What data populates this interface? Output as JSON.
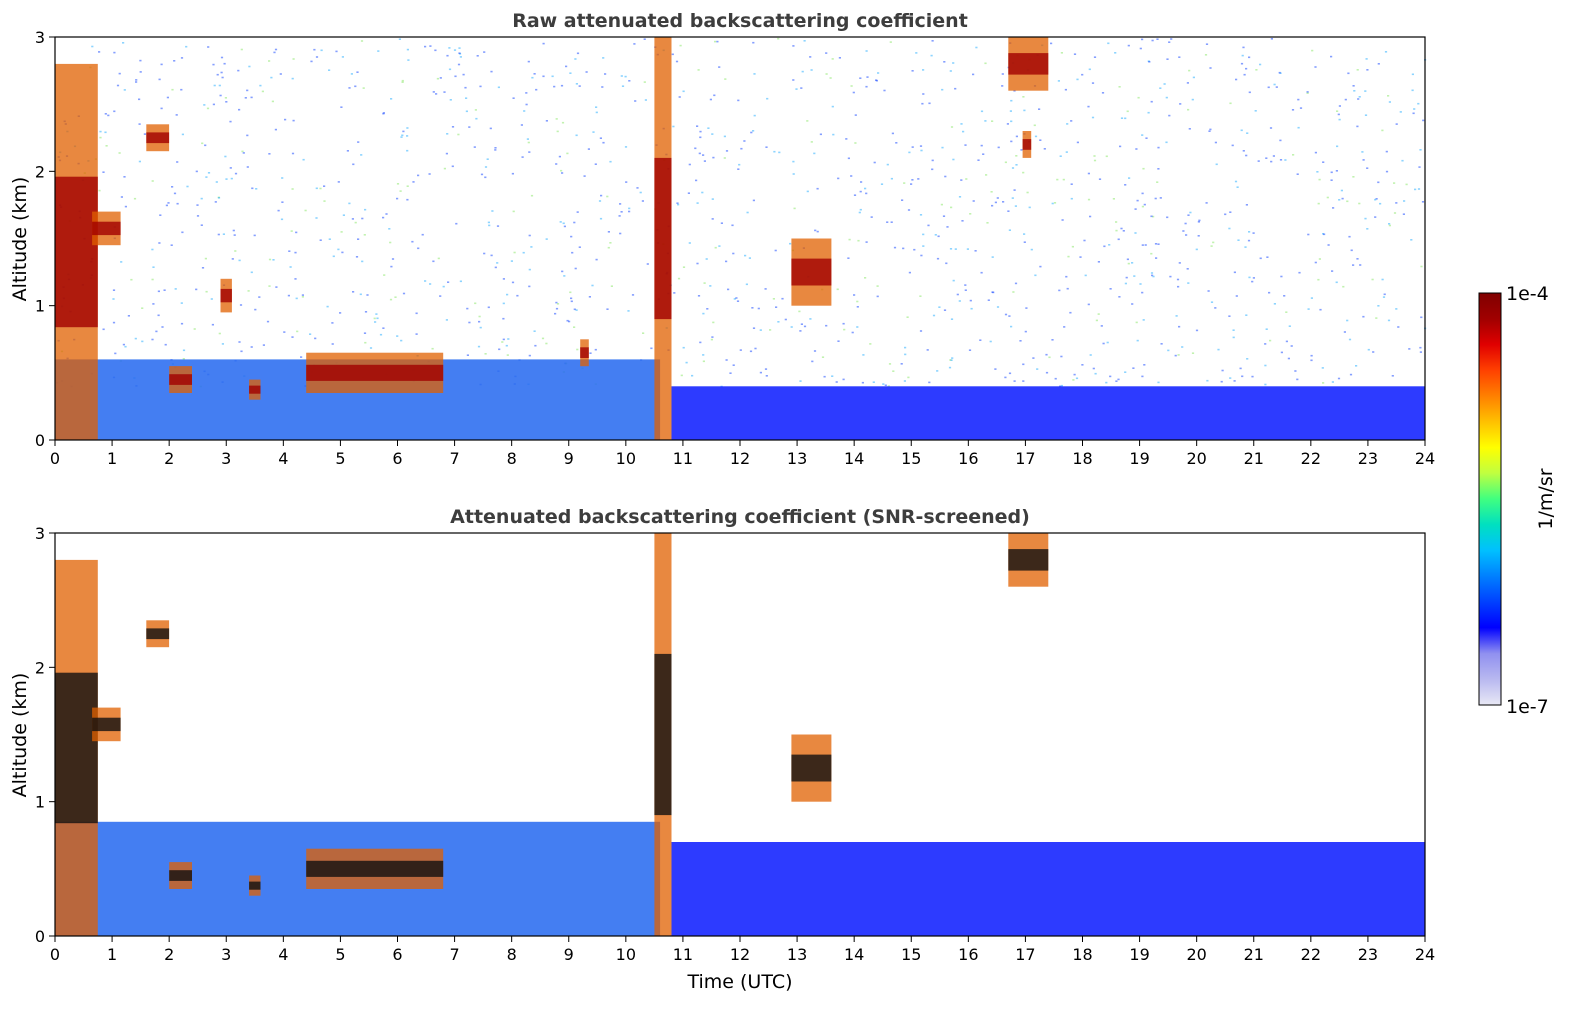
{
  "chart_data": [
    {
      "type": "heatmap",
      "title": "Raw attenuated backscattering coefficient",
      "xlabel": "",
      "ylabel": "Altitude (km)",
      "xlim": [
        0,
        24
      ],
      "ylim": [
        0,
        3
      ],
      "x_ticks": [
        "0",
        "1",
        "2",
        "3",
        "4",
        "5",
        "6",
        "7",
        "8",
        "9",
        "10",
        "11",
        "12",
        "13",
        "14",
        "15",
        "16",
        "17",
        "18",
        "19",
        "20",
        "21",
        "22",
        "23",
        "24"
      ],
      "y_ticks": [
        "0",
        "1",
        "2",
        "3"
      ],
      "screened": false,
      "colorscale": "log",
      "features": [
        {
          "kind": "boundary_layer",
          "t_start": 0.0,
          "t_end": 10.6,
          "alt_top": 0.6
        },
        {
          "kind": "boundary_layer",
          "t_start": 10.8,
          "t_end": 24.0,
          "alt_top": 0.4
        },
        {
          "kind": "cloud",
          "t_start": 0.0,
          "t_end": 0.75,
          "alt_bottom": 0.0,
          "alt_top": 2.8
        },
        {
          "kind": "cloud",
          "t_start": 0.65,
          "t_end": 1.15,
          "alt_bottom": 1.45,
          "alt_top": 1.7
        },
        {
          "kind": "cloud",
          "t_start": 1.6,
          "t_end": 2.0,
          "alt_bottom": 2.15,
          "alt_top": 2.35
        },
        {
          "kind": "cloud",
          "t_start": 2.0,
          "t_end": 2.4,
          "alt_bottom": 0.35,
          "alt_top": 0.55
        },
        {
          "kind": "cloud",
          "t_start": 2.9,
          "t_end": 3.1,
          "alt_bottom": 0.95,
          "alt_top": 1.2
        },
        {
          "kind": "cloud",
          "t_start": 3.4,
          "t_end": 3.6,
          "alt_bottom": 0.3,
          "alt_top": 0.45
        },
        {
          "kind": "cloud",
          "t_start": 4.4,
          "t_end": 6.8,
          "alt_bottom": 0.35,
          "alt_top": 0.65
        },
        {
          "kind": "cloud",
          "t_start": 9.2,
          "t_end": 9.35,
          "alt_bottom": 0.55,
          "alt_top": 0.75
        },
        {
          "kind": "cloud",
          "t_start": 10.5,
          "t_end": 10.8,
          "alt_bottom": 0.0,
          "alt_top": 3.0
        },
        {
          "kind": "cloud",
          "t_start": 12.9,
          "t_end": 13.6,
          "alt_bottom": 1.0,
          "alt_top": 1.5
        },
        {
          "kind": "cloud",
          "t_start": 16.7,
          "t_end": 17.4,
          "alt_bottom": 2.6,
          "alt_top": 3.0
        },
        {
          "kind": "cloud",
          "t_start": 16.95,
          "t_end": 17.1,
          "alt_bottom": 2.1,
          "alt_top": 2.3
        }
      ]
    },
    {
      "type": "heatmap",
      "title": "Attenuated backscattering coefficient (SNR-screened)",
      "xlabel": "Time (UTC)",
      "ylabel": "Altitude (km)",
      "xlim": [
        0,
        24
      ],
      "ylim": [
        0,
        3
      ],
      "x_ticks": [
        "0",
        "1",
        "2",
        "3",
        "4",
        "5",
        "6",
        "7",
        "8",
        "9",
        "10",
        "11",
        "12",
        "13",
        "14",
        "15",
        "16",
        "17",
        "18",
        "19",
        "20",
        "21",
        "22",
        "23",
        "24"
      ],
      "y_ticks": [
        "0",
        "1",
        "2",
        "3"
      ],
      "screened": true,
      "colorscale": "log",
      "features": [
        {
          "kind": "boundary_layer",
          "t_start": 0.0,
          "t_end": 10.6,
          "alt_top": 0.85
        },
        {
          "kind": "boundary_layer",
          "t_start": 10.8,
          "t_end": 24.0,
          "alt_top": 0.7
        },
        {
          "kind": "cloud",
          "t_start": 0.0,
          "t_end": 0.75,
          "alt_bottom": 0.0,
          "alt_top": 2.8
        },
        {
          "kind": "cloud",
          "t_start": 0.65,
          "t_end": 1.15,
          "alt_bottom": 1.45,
          "alt_top": 1.7
        },
        {
          "kind": "cloud",
          "t_start": 1.6,
          "t_end": 2.0,
          "alt_bottom": 2.15,
          "alt_top": 2.35
        },
        {
          "kind": "cloud",
          "t_start": 2.0,
          "t_end": 2.4,
          "alt_bottom": 0.35,
          "alt_top": 0.55
        },
        {
          "kind": "cloud",
          "t_start": 3.4,
          "t_end": 3.6,
          "alt_bottom": 0.3,
          "alt_top": 0.45
        },
        {
          "kind": "cloud",
          "t_start": 4.4,
          "t_end": 6.8,
          "alt_bottom": 0.35,
          "alt_top": 0.65
        },
        {
          "kind": "cloud",
          "t_start": 10.5,
          "t_end": 10.8,
          "alt_bottom": 0.0,
          "alt_top": 3.0
        },
        {
          "kind": "cloud",
          "t_start": 12.9,
          "t_end": 13.6,
          "alt_bottom": 1.0,
          "alt_top": 1.5
        },
        {
          "kind": "cloud",
          "t_start": 16.7,
          "t_end": 17.4,
          "alt_bottom": 2.6,
          "alt_top": 3.0
        }
      ]
    }
  ],
  "colorbar": {
    "label": "1/m/sr",
    "min_label": "1e-7",
    "max_label": "1e-4",
    "scale": "log",
    "colors": [
      "#e8e8f5",
      "#b8b8f0",
      "#9090f0",
      "#0000ff",
      "#0040ff",
      "#0080ff",
      "#00c0ff",
      "#00e0c0",
      "#40ff80",
      "#c0ff40",
      "#ffff00",
      "#ffc000",
      "#ff8000",
      "#ff4000",
      "#e00000",
      "#a00000",
      "#800000"
    ]
  }
}
